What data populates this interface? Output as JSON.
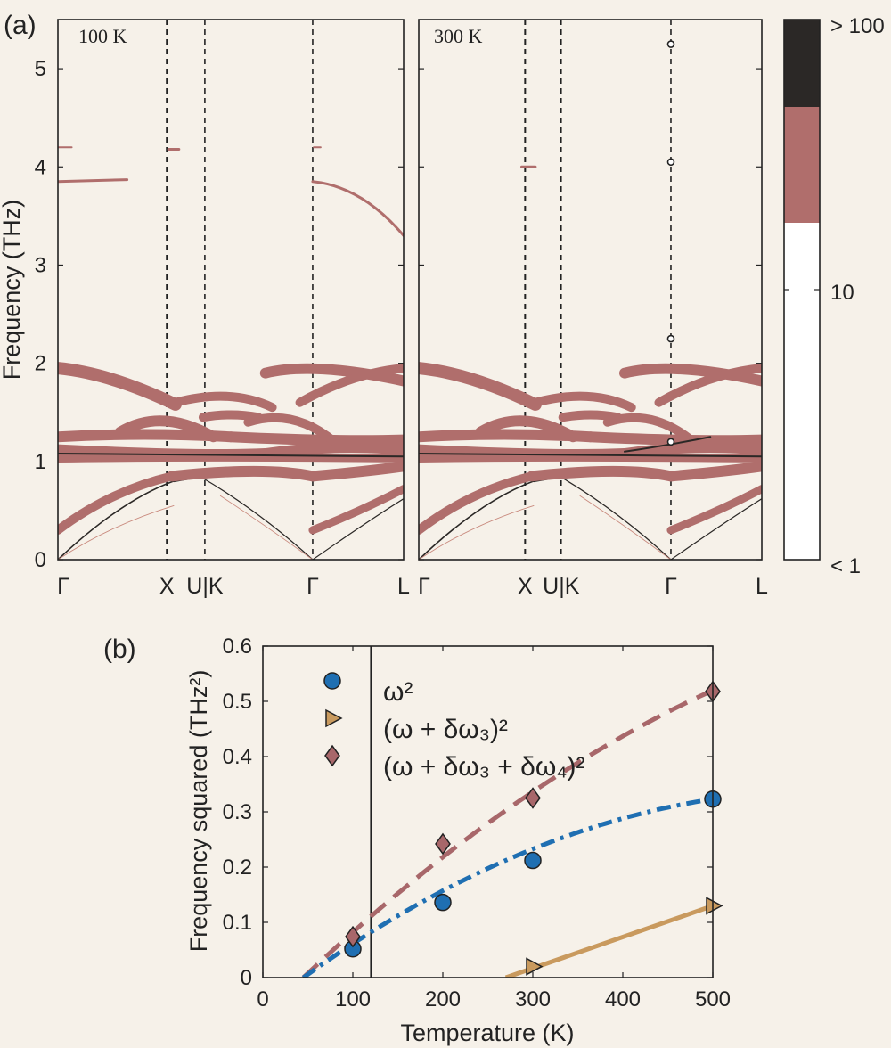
{
  "panel_a": {
    "label": "(a)",
    "ylabel": "Frequency (THz)",
    "yticks": [
      "0",
      "1",
      "2",
      "3",
      "4",
      "5"
    ],
    "left": {
      "temp_label": "100 K",
      "xticks": [
        "Γ",
        "X",
        "U|K",
        "Γ",
        "L"
      ]
    },
    "right": {
      "temp_label": "300 K",
      "xticks": [
        "Γ",
        "X",
        "U|K",
        "Γ",
        "L"
      ]
    },
    "colorbar": {
      "labels": [
        "> 100",
        "10",
        "< 1"
      ],
      "colors": [
        "#2b2826",
        "#b06e6c",
        "#ffffff"
      ]
    }
  },
  "panel_b": {
    "label": "(b)"
  },
  "chart_data": [
    {
      "type": "line",
      "title": "",
      "ylabel": "Frequency (THz)",
      "ylim": [
        0,
        5.5
      ],
      "panels": [
        {
          "temp_label": "100 K",
          "xticks": [
            "Γ",
            "X",
            "U|K",
            "Γ",
            "L"
          ]
        },
        {
          "temp_label": "300 K",
          "xticks": [
            "Γ",
            "X",
            "U|K",
            "Γ",
            "L"
          ],
          "markers_at_gamma": [
            1.2,
            2.25,
            4.05,
            5.25
          ]
        }
      ],
      "colorbar": {
        "labels": [
          "> 100",
          "10",
          "< 1"
        ]
      }
    },
    {
      "type": "scatter",
      "title": "",
      "xlabel": "Temperature (K)",
      "ylabel": "Frequency squared (THz²)",
      "xlim": [
        0,
        500
      ],
      "ylim": [
        0,
        0.6
      ],
      "xticks": [
        0,
        100,
        200,
        300,
        400,
        500
      ],
      "yticks": [
        0,
        0.1,
        0.2,
        0.3,
        0.4,
        0.5,
        0.6
      ],
      "vline_x": 120,
      "series": [
        {
          "name": "ω²",
          "color": "#1f6fb2",
          "marker": "circle",
          "x": [
            100,
            200,
            300,
            500
          ],
          "y": [
            0.052,
            0.136,
            0.212,
            0.323
          ]
        },
        {
          "name": "(ω + δω₃)²",
          "color": "#c99a5e",
          "marker": "triangle-right",
          "x": [
            300,
            500
          ],
          "y": [
            0.02,
            0.13
          ]
        },
        {
          "name": "(ω + δω₃ + δω₄)²",
          "color": "#a8676a",
          "marker": "diamond",
          "x": [
            100,
            200,
            300,
            500
          ],
          "y": [
            0.074,
            0.242,
            0.325,
            0.518
          ]
        }
      ]
    }
  ]
}
